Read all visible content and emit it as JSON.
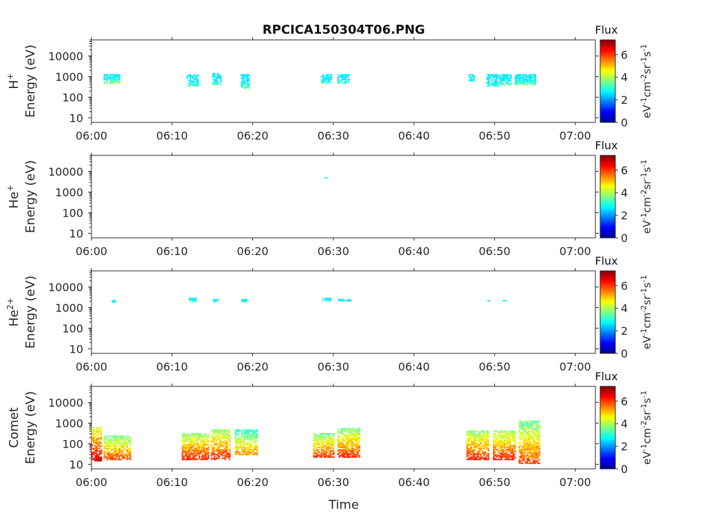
{
  "figure": {
    "title": "RPCICA150304T06.PNG",
    "xlabel": "Time"
  },
  "colorbar": {
    "label": "Flux",
    "unit_parts": [
      "eV",
      "-1",
      "cm",
      "-2",
      "sr",
      "-1",
      "s",
      "-1"
    ],
    "ticks": [
      "0",
      "2",
      "4",
      "6"
    ],
    "range": [
      0,
      7.3
    ],
    "colormap": "jet"
  },
  "axes": {
    "x_ticks": [
      "06:00",
      "06:10",
      "06:20",
      "06:30",
      "06:40",
      "06:50",
      "07:00"
    ],
    "x_range_minutes": [
      0,
      62.5
    ],
    "y_ticks": [
      "10",
      "100",
      "1000",
      "10000"
    ],
    "y_scale": "log",
    "y_range_eV": [
      6,
      60000
    ],
    "ylabel_energy": "Energy (eV)"
  },
  "colors": {
    "axis": "#262626",
    "background": "#ffffff"
  },
  "chart_data": [
    {
      "type": "heatmap",
      "panel": "H+",
      "species": "H",
      "charge": "+",
      "clusters": [
        {
          "t": [
            1.5,
            3.5
          ],
          "e": [
            400,
            1300
          ],
          "flux": 4.0
        },
        {
          "t": [
            11.8,
            13.2
          ],
          "e": [
            300,
            1200
          ],
          "flux": 3.5
        },
        {
          "t": [
            15.0,
            16.0
          ],
          "e": [
            350,
            1400
          ],
          "flux": 3.5
        },
        {
          "t": [
            18.5,
            19.5
          ],
          "e": [
            250,
            1200
          ],
          "flux": 3.5
        },
        {
          "t": [
            28.5,
            29.8
          ],
          "e": [
            400,
            1300
          ],
          "flux": 3.5
        },
        {
          "t": [
            30.5,
            32.0
          ],
          "e": [
            400,
            1200
          ],
          "flux": 3.5
        },
        {
          "t": [
            46.8,
            47.5
          ],
          "e": [
            500,
            1300
          ],
          "flux": 3.2
        },
        {
          "t": [
            49.0,
            50.5
          ],
          "e": [
            300,
            1200
          ],
          "flux": 3.2
        },
        {
          "t": [
            50.6,
            52.0
          ],
          "e": [
            350,
            1200
          ],
          "flux": 3.5
        },
        {
          "t": [
            52.5,
            55.0
          ],
          "e": [
            350,
            1200
          ],
          "flux": 3.8
        }
      ]
    },
    {
      "type": "heatmap",
      "panel": "He+",
      "species": "He",
      "charge": "+",
      "clusters": [
        {
          "t": [
            28.9,
            29.1
          ],
          "e": [
            4000,
            5200
          ],
          "flux": 3.2
        }
      ]
    },
    {
      "type": "heatmap",
      "panel": "He2+",
      "species": "He",
      "charge": "2+",
      "clusters": [
        {
          "t": [
            2.5,
            2.9
          ],
          "e": [
            1600,
            2200
          ],
          "flux": 3.0
        },
        {
          "t": [
            12.1,
            12.9
          ],
          "e": [
            1700,
            2800
          ],
          "flux": 3.6
        },
        {
          "t": [
            15.1,
            15.8
          ],
          "e": [
            1700,
            2500
          ],
          "flux": 3.4
        },
        {
          "t": [
            18.6,
            19.3
          ],
          "e": [
            1700,
            2600
          ],
          "flux": 3.5
        },
        {
          "t": [
            28.6,
            29.6
          ],
          "e": [
            1800,
            2800
          ],
          "flux": 3.5
        },
        {
          "t": [
            30.6,
            32.3
          ],
          "e": [
            1800,
            2300
          ],
          "flux": 3.2
        },
        {
          "t": [
            49.1,
            49.3
          ],
          "e": [
            1900,
            2100
          ],
          "flux": 2.8
        },
        {
          "t": [
            51.0,
            51.5
          ],
          "e": [
            1800,
            2100
          ],
          "flux": 2.4
        }
      ]
    },
    {
      "type": "heatmap",
      "panel": "Comet",
      "species": "Comet",
      "charge": "",
      "clusters": [
        {
          "t": [
            0.0,
            1.2
          ],
          "e": [
            12,
            600
          ],
          "flux": 6.8
        },
        {
          "t": [
            1.5,
            4.8
          ],
          "e": [
            15,
            250
          ],
          "flux": 6.0
        },
        {
          "t": [
            11.2,
            14.5
          ],
          "e": [
            15,
            300
          ],
          "flux": 6.3
        },
        {
          "t": [
            14.8,
            17.2
          ],
          "e": [
            15,
            450
          ],
          "flux": 6.3
        },
        {
          "t": [
            17.8,
            20.5
          ],
          "e": [
            25,
            450
          ],
          "flux": 5.5
        },
        {
          "t": [
            27.5,
            30.0
          ],
          "e": [
            20,
            300
          ],
          "flux": 6.1
        },
        {
          "t": [
            30.5,
            33.2
          ],
          "e": [
            20,
            500
          ],
          "flux": 6.2
        },
        {
          "t": [
            46.5,
            49.2
          ],
          "e": [
            15,
            400
          ],
          "flux": 6.3
        },
        {
          "t": [
            49.8,
            52.5
          ],
          "e": [
            15,
            400
          ],
          "flux": 6.3
        },
        {
          "t": [
            53.0,
            55.6
          ],
          "e": [
            10,
            1200
          ],
          "flux": 6.0
        }
      ]
    }
  ]
}
